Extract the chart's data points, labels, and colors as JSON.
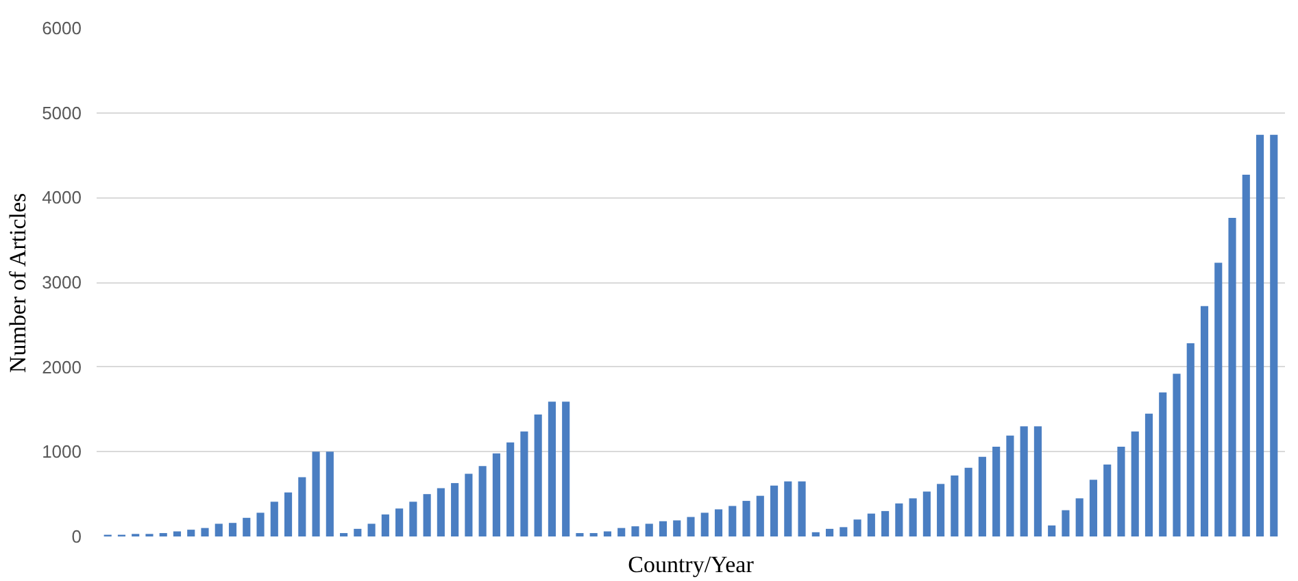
{
  "chart_data": {
    "type": "bar",
    "xlabel": "Country/Year",
    "ylabel": "Number of Articles",
    "categories": [
      null,
      null,
      null,
      null,
      null,
      null,
      null,
      null,
      null,
      null,
      null,
      null,
      null,
      null,
      null,
      null,
      null,
      null,
      null,
      null,
      null,
      null,
      null,
      null,
      null,
      null,
      null,
      null,
      null,
      null,
      null,
      null,
      null,
      null,
      null,
      null,
      null,
      null,
      null,
      null,
      null,
      null,
      null,
      null,
      null,
      null,
      null,
      null,
      null,
      null,
      null,
      null,
      null,
      null,
      null,
      null,
      null,
      null,
      null,
      null,
      null,
      null,
      null,
      null,
      null,
      null,
      null,
      null,
      null,
      null,
      null,
      null,
      null,
      null,
      null,
      null,
      null,
      null,
      null,
      null,
      null,
      null,
      null,
      null,
      null
    ],
    "values": [
      20,
      20,
      30,
      30,
      40,
      60,
      80,
      100,
      150,
      160,
      220,
      280,
      410,
      520,
      700,
      1000,
      1000,
      40,
      90,
      150,
      260,
      330,
      410,
      500,
      570,
      630,
      740,
      830,
      980,
      1110,
      1240,
      1440,
      1590,
      1590,
      40,
      40,
      60,
      100,
      120,
      150,
      180,
      190,
      230,
      280,
      320,
      360,
      420,
      480,
      600,
      650,
      650,
      50,
      90,
      110,
      200,
      270,
      300,
      390,
      450,
      530,
      620,
      720,
      810,
      940,
      1060,
      1190,
      1300,
      1300,
      130,
      310,
      450,
      670,
      850,
      1060,
      1240,
      1450,
      1700,
      1920,
      2280,
      2720,
      3230,
      3760,
      4270,
      4740,
      4740
    ],
    "color": "#4a7ec2",
    "ylim": [
      0,
      6000
    ],
    "yticks": [
      0,
      1000,
      2000,
      3000,
      4000,
      5000,
      6000
    ],
    "grid": "y"
  }
}
